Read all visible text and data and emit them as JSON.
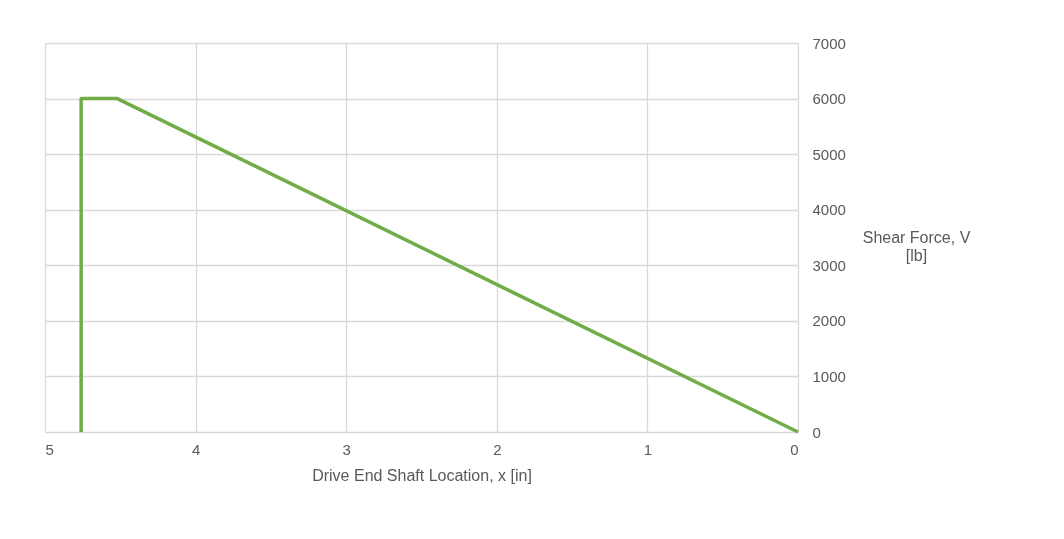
{
  "chart_data": {
    "type": "line",
    "xlabel": "Drive End Shaft Location, x [in]",
    "ylabel": "Shear Force, V [lb]",
    "x": [
      4.76,
      4.76,
      4.52,
      0
    ],
    "series": [
      {
        "color": "#70ad47",
        "values": [
          0,
          6000,
          6000,
          0
        ]
      }
    ],
    "xlim": [
      5,
      0
    ],
    "xticks": [
      5,
      4,
      3,
      2,
      1,
      0
    ],
    "ylim": [
      0,
      7000
    ],
    "yticks": [
      0,
      1000,
      2000,
      3000,
      4000,
      5000,
      6000,
      7000
    ],
    "grid": true,
    "marker": "none",
    "line_style": "solid"
  }
}
